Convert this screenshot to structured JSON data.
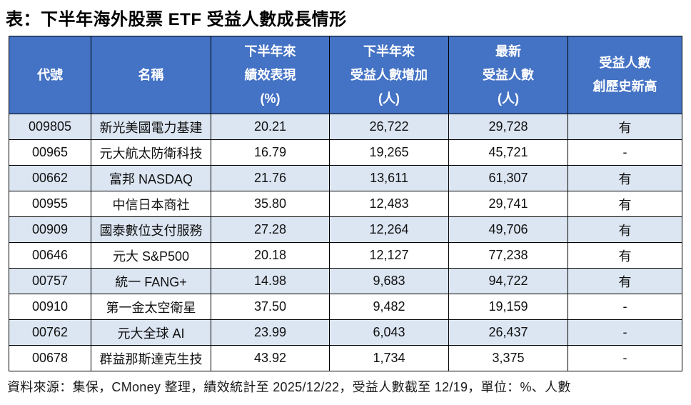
{
  "page": {
    "title": "表：下半年海外股票 ETF 受益人數成長情形",
    "footer": "資料來源：集保，CMoney 整理，績效統計至 2025/12/22，受益人數截至 12/19，單位：%、人數"
  },
  "colors": {
    "header_bg": "#4472C4",
    "header_text": "#FFFFFF",
    "row_alt_bg": "#DCE6F2",
    "row_bg": "#FFFFFF",
    "border": "#000000"
  },
  "chart_data": {
    "type": "table",
    "title": "表：下半年海外股票 ETF 受益人數成長情形",
    "source_note": "資料來源：集保，CMoney 整理，績效統計至 2025/12/22，受益人數截至 12/19，單位：%、人數",
    "columns": [
      {
        "key": "code",
        "lines": [
          "代號"
        ]
      },
      {
        "key": "name",
        "lines": [
          "名稱"
        ]
      },
      {
        "key": "perf",
        "lines": [
          "下半年來",
          "績效表現",
          "(%)"
        ]
      },
      {
        "key": "increase",
        "lines": [
          "下半年來",
          "受益人數增加",
          "(人)"
        ]
      },
      {
        "key": "latest",
        "lines": [
          "最新",
          "受益人數",
          "(人)"
        ]
      },
      {
        "key": "record",
        "lines": [
          "受益人數",
          "創歷史新高"
        ]
      }
    ],
    "rows": [
      [
        "009805",
        "新光美國電力基建",
        "20.21",
        "26,722",
        "29,728",
        "有"
      ],
      [
        "00965",
        "元大航太防衛科技",
        "16.79",
        "19,265",
        "45,721",
        "-"
      ],
      [
        "00662",
        "富邦 NASDAQ",
        "21.76",
        "13,611",
        "61,307",
        "有"
      ],
      [
        "00955",
        "中信日本商社",
        "35.80",
        "12,483",
        "29,741",
        "有"
      ],
      [
        "00909",
        "國泰數位支付服務",
        "27.28",
        "12,264",
        "49,706",
        "有"
      ],
      [
        "00646",
        "元大 S&P500",
        "20.18",
        "12,127",
        "77,238",
        "有"
      ],
      [
        "00757",
        "統一 FANG+",
        "14.98",
        "9,683",
        "94,722",
        "有"
      ],
      [
        "00910",
        "第一金太空衛星",
        "37.50",
        "9,482",
        "19,159",
        "-"
      ],
      [
        "00762",
        "元大全球 AI",
        "23.99",
        "6,043",
        "26,437",
        "-"
      ],
      [
        "00678",
        "群益那斯達克生技",
        "43.92",
        "1,734",
        "3,375",
        "-"
      ]
    ]
  }
}
